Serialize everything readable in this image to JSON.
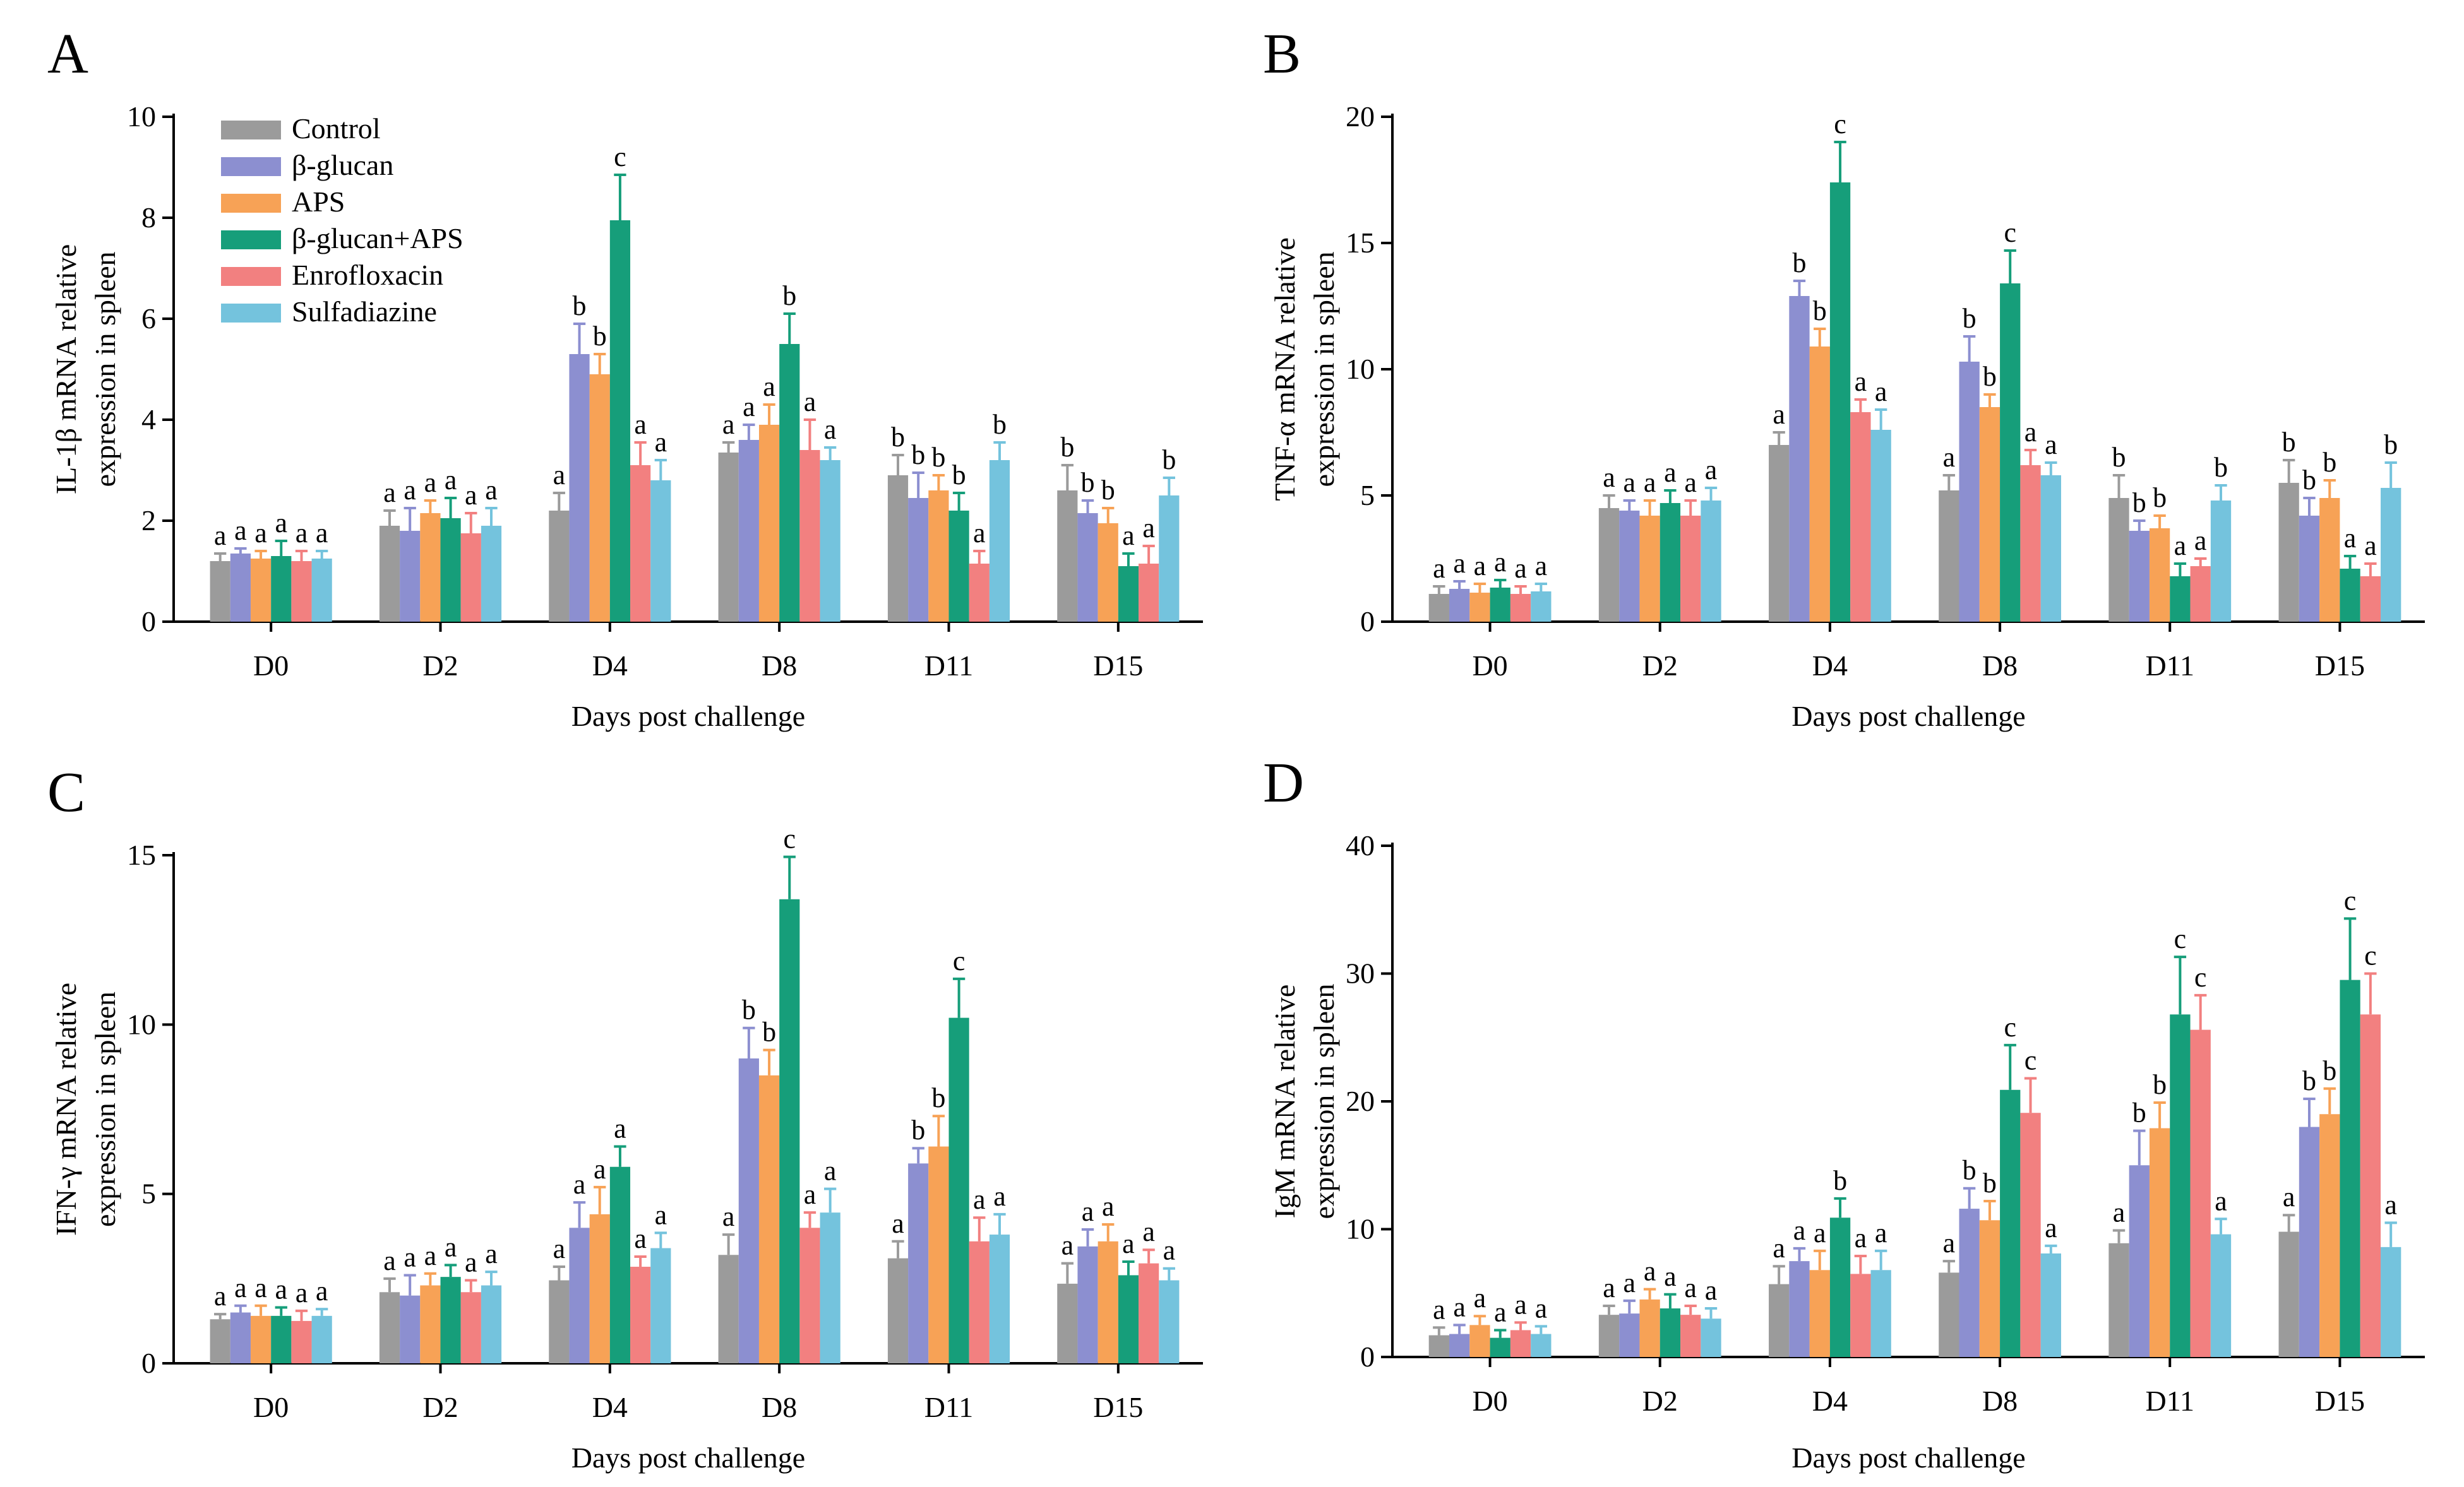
{
  "figure_title": "",
  "colors": {
    "Control": "#9b9b9b",
    "β-glucan": "#8c8fd0",
    "APS": "#f7a256",
    "β-glucan+APS": "#169e7a",
    "Enrofloxacin": "#f28080",
    "Sulfadiazine": "#74c3dd"
  },
  "legend": [
    "Control",
    "β-glucan",
    "APS",
    "β-glucan+APS",
    "Enrofloxacin",
    "Sulfadiazine"
  ],
  "chart_data": [
    {
      "type": "bar",
      "panel": "A",
      "title": "",
      "xlabel": "Days post challenge",
      "ylabel": [
        "IL-1β mRNA relative",
        "expression in spleen"
      ],
      "categories": [
        "D0",
        "D2",
        "D4",
        "D8",
        "D11",
        "D15"
      ],
      "ylim": [
        0,
        10
      ],
      "yticks": [
        0,
        2,
        4,
        6,
        8,
        10
      ],
      "show_legend": true,
      "series": [
        {
          "name": "Control",
          "values": [
            1.2,
            1.9,
            2.2,
            3.35,
            2.9,
            2.6
          ],
          "errors": [
            0.15,
            0.3,
            0.35,
            0.2,
            0.4,
            0.5
          ],
          "labels": [
            "a",
            "a",
            "a",
            "a",
            "b",
            "b"
          ]
        },
        {
          "name": "β-glucan",
          "values": [
            1.35,
            1.8,
            5.3,
            3.6,
            2.45,
            2.15
          ],
          "errors": [
            0.1,
            0.45,
            0.6,
            0.3,
            0.5,
            0.25
          ],
          "labels": [
            "a",
            "a",
            "b",
            "a",
            "b",
            "b"
          ]
        },
        {
          "name": "APS",
          "values": [
            1.25,
            2.15,
            4.9,
            3.9,
            2.6,
            1.95
          ],
          "errors": [
            0.15,
            0.25,
            0.4,
            0.4,
            0.3,
            0.3
          ],
          "labels": [
            "a",
            "a",
            "b",
            "a",
            "b",
            "b"
          ]
        },
        {
          "name": "β-glucan+APS",
          "values": [
            1.3,
            2.05,
            7.95,
            5.5,
            2.2,
            1.1
          ],
          "errors": [
            0.3,
            0.4,
            0.9,
            0.6,
            0.35,
            0.25
          ],
          "labels": [
            "a",
            "a",
            "c",
            "b",
            "b",
            "a"
          ]
        },
        {
          "name": "Enrofloxacin",
          "values": [
            1.2,
            1.75,
            3.1,
            3.4,
            1.15,
            1.15
          ],
          "errors": [
            0.2,
            0.4,
            0.45,
            0.6,
            0.25,
            0.35
          ],
          "labels": [
            "a",
            "a",
            "a",
            "a",
            "a",
            "a"
          ]
        },
        {
          "name": "Sulfadiazine",
          "values": [
            1.25,
            1.9,
            2.8,
            3.2,
            3.2,
            2.5
          ],
          "errors": [
            0.15,
            0.35,
            0.4,
            0.25,
            0.35,
            0.35
          ],
          "labels": [
            "a",
            "a",
            "a",
            "a",
            "b",
            "b"
          ]
        }
      ]
    },
    {
      "type": "bar",
      "panel": "B",
      "title": "",
      "xlabel": "Days post challenge",
      "ylabel": [
        "TNF-α mRNA relative",
        "expression in spleen"
      ],
      "categories": [
        "D0",
        "D2",
        "D4",
        "D8",
        "D11",
        "D15"
      ],
      "ylim": [
        0,
        20
      ],
      "yticks": [
        0,
        5,
        10,
        15,
        20
      ],
      "show_legend": false,
      "series": [
        {
          "name": "Control",
          "values": [
            1.1,
            4.5,
            7.0,
            5.2,
            4.9,
            5.5
          ],
          "errors": [
            0.3,
            0.5,
            0.5,
            0.6,
            0.9,
            0.9
          ],
          "labels": [
            "a",
            "a",
            "a",
            "a",
            "b",
            "b"
          ]
        },
        {
          "name": "β-glucan",
          "values": [
            1.3,
            4.4,
            12.9,
            10.3,
            3.6,
            4.2
          ],
          "errors": [
            0.3,
            0.4,
            0.6,
            1.0,
            0.4,
            0.7
          ],
          "labels": [
            "a",
            "a",
            "b",
            "b",
            "b",
            "b"
          ]
        },
        {
          "name": "APS",
          "values": [
            1.15,
            4.2,
            10.9,
            8.5,
            3.7,
            4.9
          ],
          "errors": [
            0.35,
            0.6,
            0.7,
            0.5,
            0.5,
            0.7
          ],
          "labels": [
            "a",
            "a",
            "b",
            "b",
            "b",
            "b"
          ]
        },
        {
          "name": "β-glucan+APS",
          "values": [
            1.35,
            4.7,
            17.4,
            13.4,
            1.8,
            2.1
          ],
          "errors": [
            0.3,
            0.5,
            1.6,
            1.3,
            0.5,
            0.5
          ],
          "labels": [
            "a",
            "a",
            "c",
            "c",
            "a",
            "a"
          ]
        },
        {
          "name": "Enrofloxacin",
          "values": [
            1.1,
            4.2,
            8.3,
            6.2,
            2.2,
            1.8
          ],
          "errors": [
            0.3,
            0.6,
            0.5,
            0.6,
            0.3,
            0.5
          ],
          "labels": [
            "a",
            "a",
            "a",
            "a",
            "a",
            "a"
          ]
        },
        {
          "name": "Sulfadiazine",
          "values": [
            1.2,
            4.8,
            7.6,
            5.8,
            4.8,
            5.3
          ],
          "errors": [
            0.3,
            0.5,
            0.8,
            0.5,
            0.6,
            1.0
          ],
          "labels": [
            "a",
            "a",
            "a",
            "a",
            "b",
            "b"
          ]
        }
      ]
    },
    {
      "type": "bar",
      "panel": "C",
      "title": "",
      "xlabel": "Days post challenge",
      "ylabel": [
        "IFN-γ mRNA relative",
        "expression in spleen"
      ],
      "categories": [
        "D0",
        "D2",
        "D4",
        "D8",
        "D11",
        "D15"
      ],
      "ylim": [
        0,
        15
      ],
      "yticks": [
        0,
        5,
        10,
        15
      ],
      "show_legend": false,
      "series": [
        {
          "name": "Control",
          "values": [
            1.3,
            2.1,
            2.45,
            3.2,
            3.1,
            2.35
          ],
          "errors": [
            0.15,
            0.4,
            0.4,
            0.6,
            0.5,
            0.6
          ],
          "labels": [
            "a",
            "a",
            "a",
            "a",
            "a",
            "a"
          ]
        },
        {
          "name": "β-glucan",
          "values": [
            1.5,
            2.0,
            4.0,
            9.0,
            5.9,
            3.45
          ],
          "errors": [
            0.2,
            0.6,
            0.75,
            0.9,
            0.45,
            0.5
          ],
          "labels": [
            "a",
            "a",
            "a",
            "b",
            "b",
            "a"
          ]
        },
        {
          "name": "APS",
          "values": [
            1.4,
            2.3,
            4.4,
            8.5,
            6.4,
            3.6
          ],
          "errors": [
            0.3,
            0.35,
            0.8,
            0.75,
            0.9,
            0.5
          ],
          "labels": [
            "a",
            "a",
            "a",
            "b",
            "b",
            "a"
          ]
        },
        {
          "name": "β-glucan+APS",
          "values": [
            1.4,
            2.55,
            5.8,
            13.7,
            10.2,
            2.6
          ],
          "errors": [
            0.25,
            0.35,
            0.6,
            1.25,
            1.15,
            0.4
          ],
          "labels": [
            "a",
            "a",
            "a",
            "c",
            "c",
            "a"
          ]
        },
        {
          "name": "Enrofloxacin",
          "values": [
            1.25,
            2.1,
            2.85,
            4.0,
            3.6,
            2.95
          ],
          "errors": [
            0.3,
            0.35,
            0.3,
            0.45,
            0.7,
            0.4
          ],
          "labels": [
            "a",
            "a",
            "a",
            "a",
            "a",
            "a"
          ]
        },
        {
          "name": "Sulfadiazine",
          "values": [
            1.4,
            2.3,
            3.4,
            4.45,
            3.8,
            2.45
          ],
          "errors": [
            0.2,
            0.4,
            0.45,
            0.7,
            0.6,
            0.35
          ],
          "labels": [
            "a",
            "a",
            "a",
            "a",
            "a",
            "a"
          ]
        }
      ]
    },
    {
      "type": "bar",
      "panel": "D",
      "title": "",
      "xlabel": "Days post challenge",
      "ylabel": [
        "IgM mRNA relative",
        "expression in spleen"
      ],
      "categories": [
        "D0",
        "D2",
        "D4",
        "D8",
        "D11",
        "D15"
      ],
      "ylim": [
        0,
        40
      ],
      "yticks": [
        0,
        10,
        20,
        30,
        40
      ],
      "show_legend": false,
      "series": [
        {
          "name": "Control",
          "values": [
            1.7,
            3.3,
            5.7,
            6.6,
            8.9,
            9.8
          ],
          "errors": [
            0.6,
            0.7,
            1.4,
            0.9,
            1.0,
            1.3
          ],
          "labels": [
            "a",
            "a",
            "a",
            "a",
            "a",
            "a"
          ]
        },
        {
          "name": "β-glucan",
          "values": [
            1.8,
            3.4,
            7.5,
            11.6,
            15.0,
            18.0
          ],
          "errors": [
            0.7,
            1.0,
            1.0,
            1.6,
            2.7,
            2.2
          ],
          "labels": [
            "a",
            "a",
            "a",
            "b",
            "b",
            "b"
          ]
        },
        {
          "name": "APS",
          "values": [
            2.5,
            4.5,
            6.8,
            10.7,
            17.9,
            19.0
          ],
          "errors": [
            0.7,
            0.8,
            1.5,
            1.5,
            2.0,
            2.0
          ],
          "labels": [
            "a",
            "a",
            "a",
            "b",
            "b",
            "b"
          ]
        },
        {
          "name": "β-glucan+APS",
          "values": [
            1.5,
            3.8,
            10.9,
            20.9,
            26.8,
            29.5
          ],
          "errors": [
            0.6,
            1.1,
            1.5,
            3.5,
            4.5,
            4.8
          ],
          "labels": [
            "a",
            "a",
            "b",
            "c",
            "c",
            "c"
          ]
        },
        {
          "name": "Enrofloxacin",
          "values": [
            2.1,
            3.3,
            6.5,
            19.1,
            25.6,
            26.8
          ],
          "errors": [
            0.6,
            0.7,
            1.4,
            2.7,
            2.7,
            3.2
          ],
          "labels": [
            "a",
            "a",
            "a",
            "c",
            "c",
            "c"
          ]
        },
        {
          "name": "Sulfadiazine",
          "values": [
            1.8,
            3.0,
            6.8,
            8.1,
            9.6,
            8.6
          ],
          "errors": [
            0.6,
            0.8,
            1.5,
            0.6,
            1.2,
            1.9
          ],
          "labels": [
            "a",
            "a",
            "a",
            "a",
            "a",
            "a"
          ]
        }
      ]
    }
  ]
}
